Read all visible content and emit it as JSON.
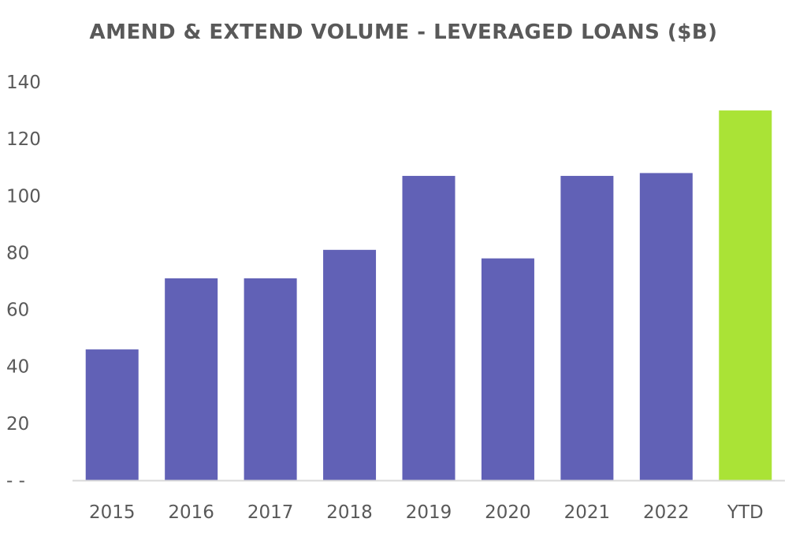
{
  "chart_data": {
    "type": "bar",
    "title": "AMEND & EXTEND VOLUME - LEVERAGED LOANS ($B)",
    "xlabel": "",
    "ylabel": "",
    "categories": [
      "2015",
      "2016",
      "2017",
      "2018",
      "2019",
      "2020",
      "2021",
      "2022",
      "YTD"
    ],
    "values": [
      46,
      71,
      71,
      81,
      107,
      78,
      107,
      108,
      130
    ],
    "ylim": [
      0,
      140
    ],
    "y_ticks": [
      0,
      20,
      40,
      60,
      80,
      100,
      120,
      140
    ],
    "y_tick_labels": [
      "- -",
      "20",
      "40",
      "60",
      "80",
      "100",
      "120",
      "140"
    ],
    "grid": false,
    "legend": "none",
    "colors": {
      "bar": "#6161b6",
      "highlight_bar": "#aae336",
      "axis_line": "#d9d9d9",
      "text": "#595959"
    },
    "highlight_category": "YTD"
  }
}
